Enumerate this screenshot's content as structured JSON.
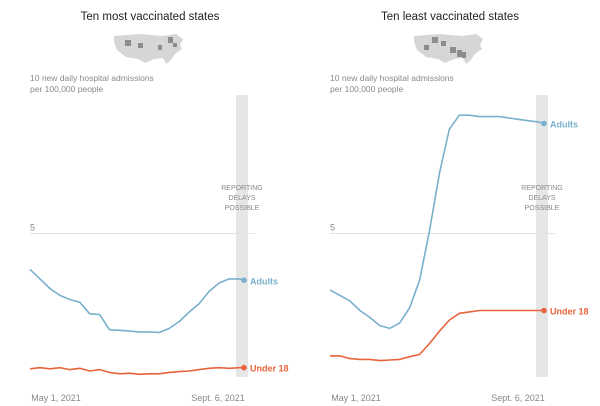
{
  "colors": {
    "adults": "#79b0cd",
    "under18": "#e8643c",
    "delay_band": "#e6e6e6",
    "gridline": "#e2e2e2",
    "map_base": "#d6d6d6",
    "map_highlight": "#8c8c8c"
  },
  "chart_data": [
    {
      "type": "line",
      "title": "Ten most vaccinated states",
      "ylabel": [
        "10 new daily hospital admissions",
        "per 100,000 people"
      ],
      "y_tick": 5,
      "ylim": [
        0,
        10
      ],
      "x_ticks": [
        "May 1, 2021",
        "Sept. 6, 2021"
      ],
      "delay_label": [
        "REPORTING",
        "DELAYS",
        "POSSIBLE"
      ],
      "icon": "us-map-icon",
      "x": [
        0,
        6,
        12,
        18,
        24,
        30,
        36,
        42,
        48,
        54,
        60,
        66,
        72,
        78,
        84,
        90,
        96,
        102,
        108,
        114,
        120,
        126,
        129
      ],
      "series": [
        {
          "name": "Adults",
          "values": [
            3.7,
            3.35,
            3.0,
            2.75,
            2.6,
            2.5,
            2.08,
            2.05,
            1.5,
            1.48,
            1.45,
            1.42,
            1.42,
            1.4,
            1.55,
            1.8,
            2.15,
            2.45,
            2.9,
            3.2,
            3.35,
            3.35,
            3.3
          ]
        },
        {
          "name": "Under 18",
          "values": [
            0.08,
            0.12,
            0.08,
            0.12,
            0.05,
            0.1,
            0.0,
            0.05,
            -0.05,
            -0.1,
            -0.08,
            -0.12,
            -0.1,
            -0.1,
            -0.05,
            -0.02,
            0.0,
            0.05,
            0.1,
            0.12,
            0.1,
            0.12,
            0.12
          ]
        }
      ]
    },
    {
      "type": "line",
      "title": "Ten least vaccinated states",
      "ylabel": [
        "10 new daily hospital admissions",
        "per 100,000 people"
      ],
      "y_tick": 5,
      "ylim": [
        0,
        10
      ],
      "x_ticks": [
        "May 1, 2021",
        "Sept. 6, 2021"
      ],
      "delay_label": [
        "REPORTING",
        "DELAYS",
        "POSSIBLE"
      ],
      "icon": "us-map-icon",
      "x": [
        0,
        6,
        12,
        18,
        24,
        30,
        36,
        42,
        48,
        54,
        60,
        66,
        72,
        78,
        84,
        90,
        96,
        102,
        108,
        114,
        120,
        126,
        129
      ],
      "series": [
        {
          "name": "Adults",
          "values": [
            2.95,
            2.75,
            2.55,
            2.2,
            1.95,
            1.65,
            1.55,
            1.75,
            2.3,
            3.3,
            5.1,
            7.2,
            8.8,
            9.3,
            9.3,
            9.25,
            9.25,
            9.25,
            9.2,
            9.15,
            9.1,
            9.05,
            9.0
          ],
          "plot_x_extent": 129
        },
        {
          "name": "Under 18",
          "values": [
            0.55,
            0.55,
            0.45,
            0.42,
            0.42,
            0.38,
            0.4,
            0.42,
            0.52,
            0.6,
            1.0,
            1.45,
            1.85,
            2.1,
            2.15,
            2.2,
            2.2,
            2.2,
            2.2,
            2.2,
            2.2,
            2.2,
            2.2
          ]
        }
      ]
    }
  ]
}
